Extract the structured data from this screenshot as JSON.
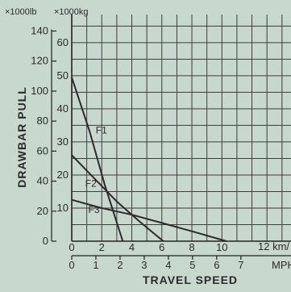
{
  "chart_data": {
    "type": "line",
    "xlabel": "TRAVEL SPEED",
    "ylabel": "DRAWBAR PULL",
    "x_unit_primary": "12 km/",
    "x_unit_secondary": "MPH",
    "y_unit_left": "×1000lb",
    "y_unit_right": "×1000kg",
    "x_km_ticks": [
      0,
      2,
      4,
      6,
      8,
      10
    ],
    "x_km_unit_value": 12,
    "x_mph_ticks": [
      0,
      1,
      2,
      3,
      4,
      5,
      6,
      7
    ],
    "y_lb_ticks": [
      0,
      20,
      40,
      60,
      80,
      100,
      120,
      140
    ],
    "y_kg_ticks": [
      10,
      20,
      30,
      40,
      50,
      60
    ],
    "xlim": [
      0,
      14.6
    ],
    "ylim": [
      0,
      68.5
    ],
    "grid": true,
    "series": [
      {
        "name": "F1",
        "x": [
          0,
          1.2,
          2.2,
          3.4
        ],
        "y": [
          49.5,
          33.0,
          17.0,
          0
        ]
      },
      {
        "name": "F2",
        "x": [
          0,
          1.5,
          3.0,
          4.5,
          6.1
        ],
        "y": [
          26.0,
          19.0,
          12.0,
          6.0,
          0
        ]
      },
      {
        "name": "F3",
        "x": [
          0,
          2.0,
          4.0,
          6.0,
          8.0,
          10.3
        ],
        "y": [
          12.5,
          10.0,
          8.0,
          5.5,
          3.0,
          0
        ]
      }
    ],
    "curve_label_positions": [
      {
        "name": "F1",
        "x": 1.6,
        "y": 32.5
      },
      {
        "name": "F2",
        "x": 0.9,
        "y": 16.5
      },
      {
        "name": "F3",
        "x": 1.1,
        "y": 8.5
      }
    ]
  }
}
